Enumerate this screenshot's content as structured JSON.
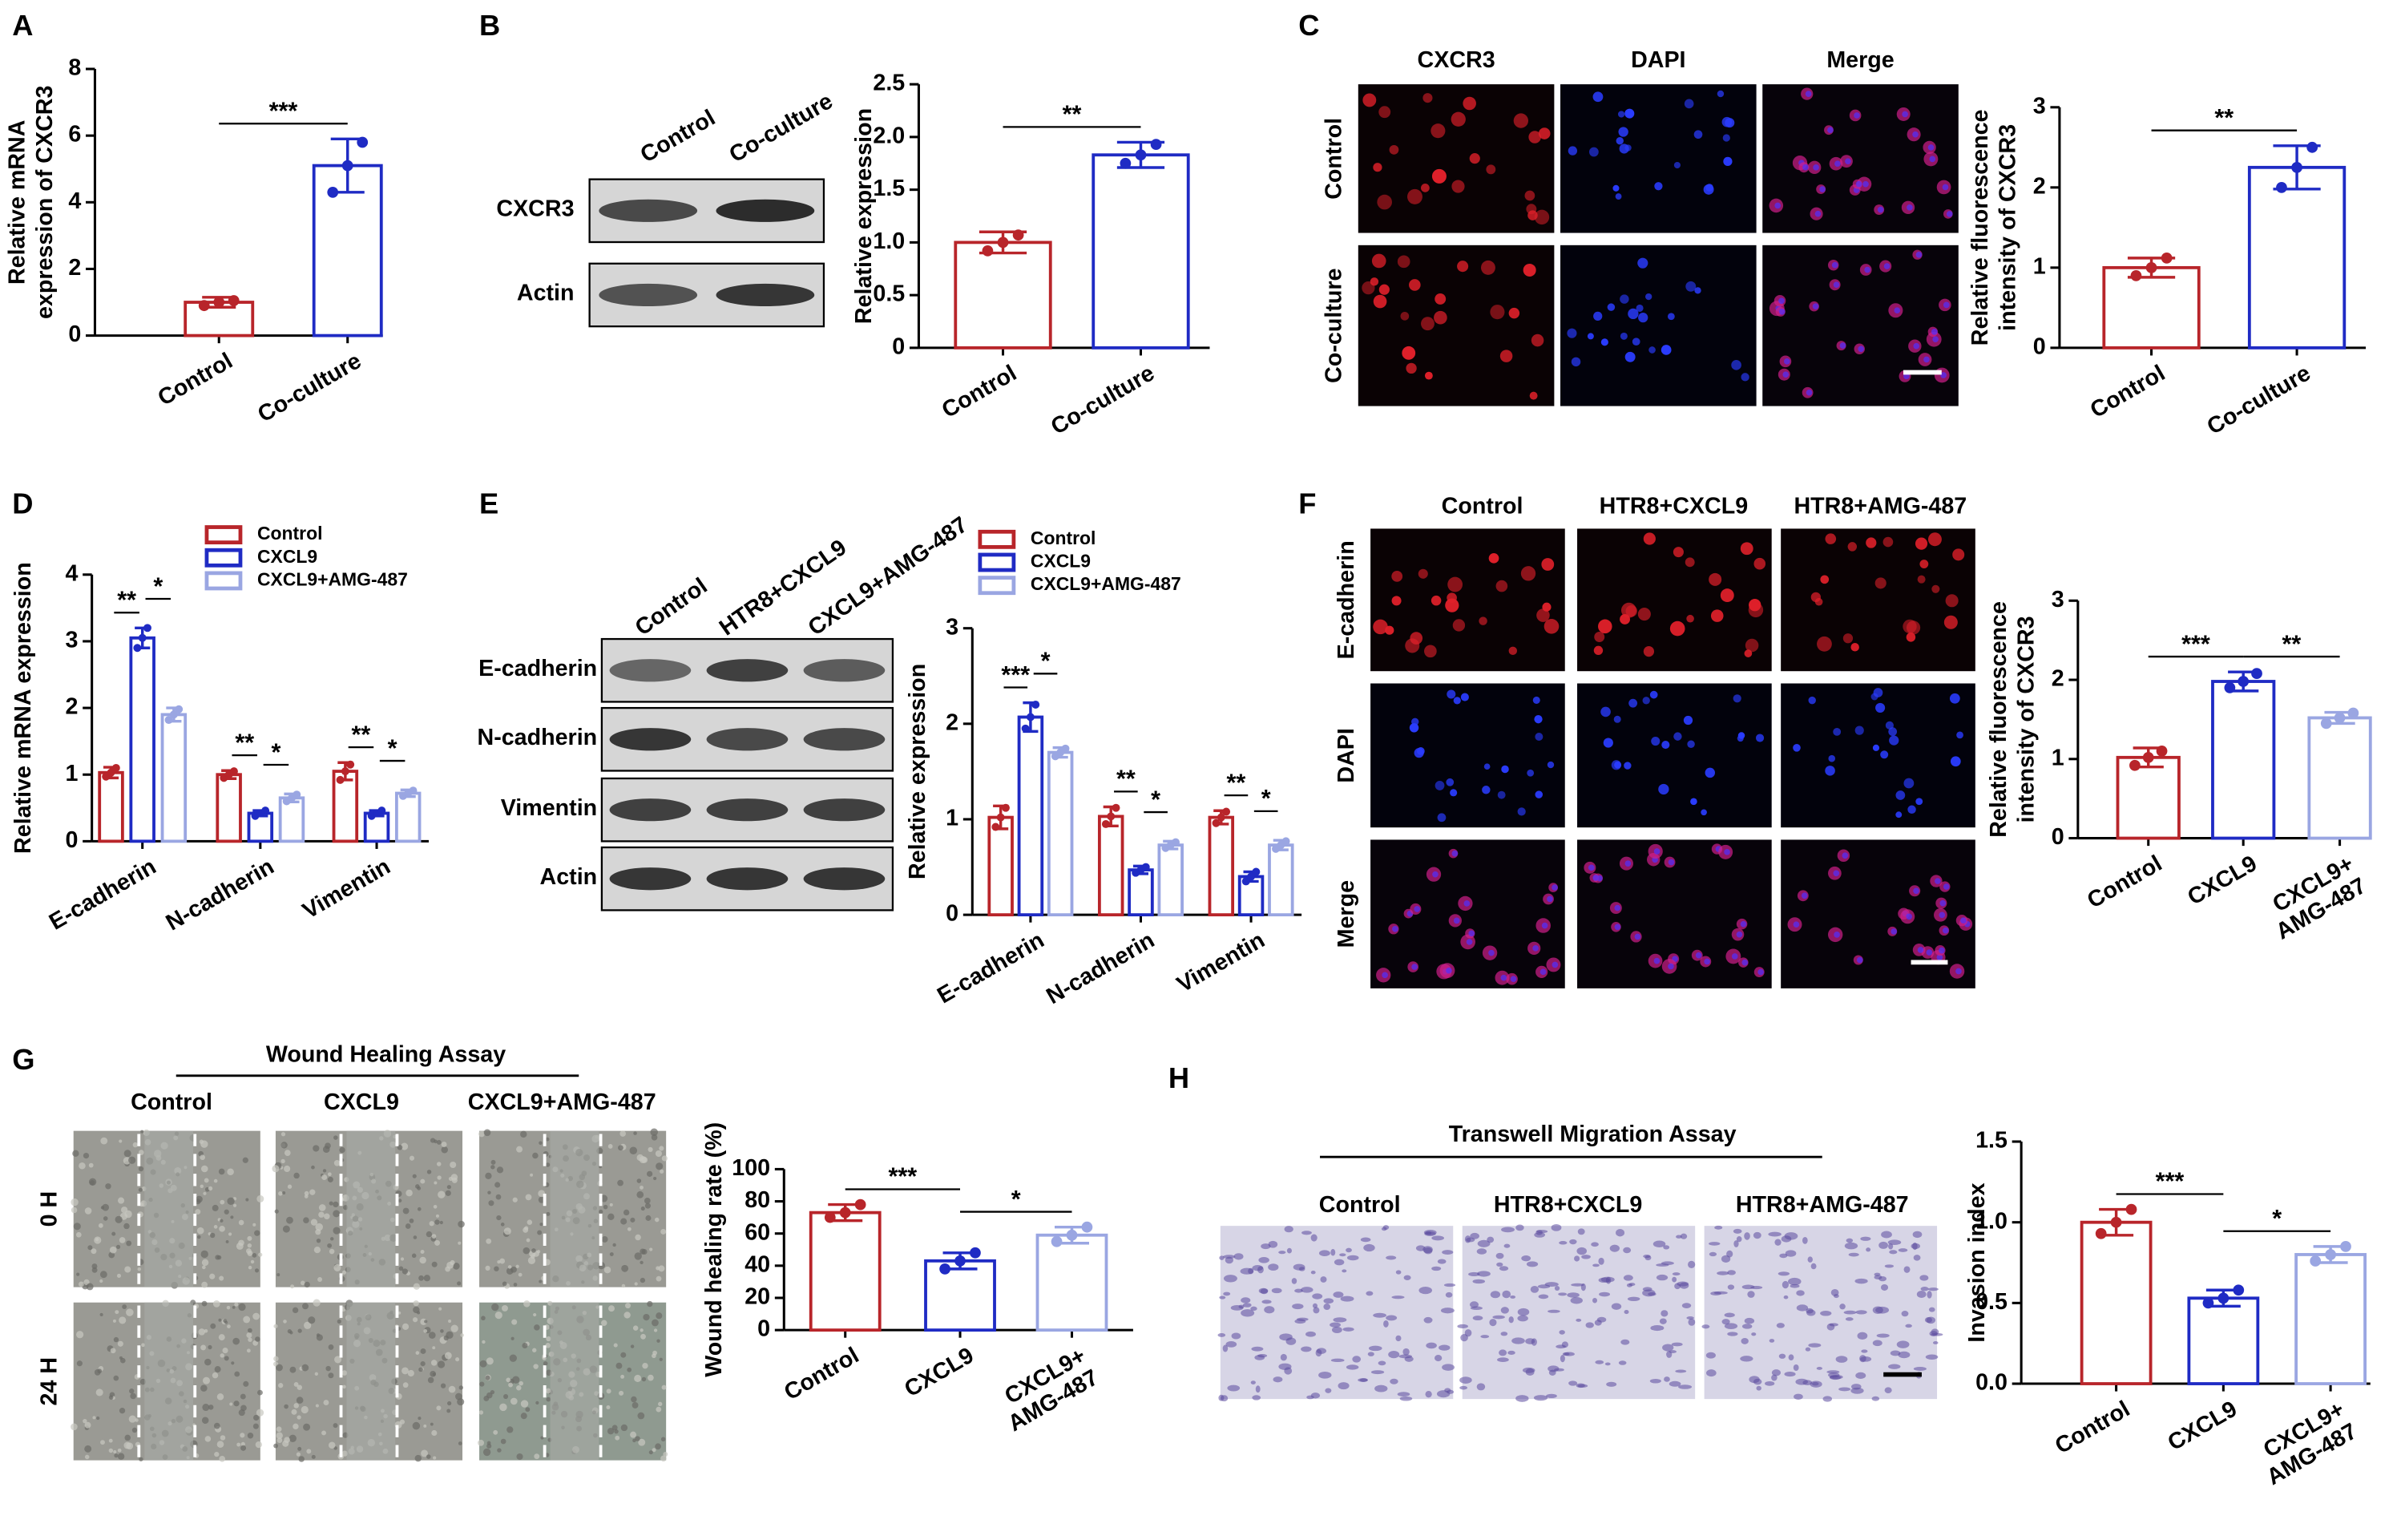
{
  "chart_data": [
    {
      "type": "bar",
      "ylabel": [
        "Relative mRNA",
        "expression of CXCR3"
      ],
      "categories": [
        "Control",
        "Co-culture"
      ],
      "values": [
        1.0,
        5.1
      ],
      "errors": [
        0.15,
        0.8
      ],
      "points": [
        [
          0.9,
          1.0,
          1.05
        ],
        [
          4.3,
          5.1,
          5.8
        ]
      ],
      "colors": [
        "#b8252a",
        "#1f2bc4"
      ],
      "ylim": [
        0,
        8
      ],
      "yticks": [
        0,
        2,
        4,
        6,
        8
      ],
      "annotations": [
        {
          "text": "***",
          "between": [
            "Control",
            "Co-culture"
          ]
        }
      ]
    },
    {
      "type": "bar",
      "ylabel": [
        "Relative expression"
      ],
      "categories": [
        "Control",
        "Co-culture"
      ],
      "values": [
        1.0,
        1.83
      ],
      "errors": [
        0.1,
        0.12
      ],
      "points": [
        [
          0.92,
          1.0,
          1.07
        ],
        [
          1.75,
          1.83,
          1.93
        ]
      ],
      "colors": [
        "#b8252a",
        "#1f2bc4"
      ],
      "ylim": [
        0,
        2.5
      ],
      "yticks": [
        0,
        0.5,
        {
          "value": 1,
          "label": "1.0"
        },
        1.5,
        {
          "value": 2,
          "label": "2.0"
        },
        2.5
      ],
      "annotations": [
        {
          "text": "**",
          "between": [
            "Control",
            "Co-culture"
          ]
        }
      ]
    },
    {
      "type": "bar",
      "ylabel": [
        "Relative fluorescence",
        "intensity of CXCR3"
      ],
      "categories": [
        "Control",
        "Co-culture"
      ],
      "values": [
        1.0,
        2.25
      ],
      "errors": [
        0.12,
        0.27
      ],
      "points": [
        [
          0.9,
          1.0,
          1.12
        ],
        [
          2.0,
          2.25,
          2.5
        ]
      ],
      "colors": [
        "#b8252a",
        "#1f2bc4"
      ],
      "ylim": [
        0,
        3
      ],
      "yticks": [
        0,
        1,
        2,
        3
      ],
      "annotations": [
        {
          "text": "**",
          "between": [
            "Control",
            "Co-culture"
          ]
        }
      ]
    },
    {
      "type": "bar",
      "ylabel": [
        "Relative mRNA expression"
      ],
      "categories": [
        "E-cadherin",
        "N-cadherin",
        "Vimentin"
      ],
      "legend": "top",
      "series": [
        {
          "name": "Control",
          "color": "#b8252a",
          "values": [
            1.03,
            1.0,
            1.05
          ],
          "errors": [
            0.08,
            0.06,
            0.13
          ],
          "points": [
            [
              0.97,
              1.03,
              1.1
            ],
            [
              0.95,
              1.0,
              1.05
            ],
            [
              0.92,
              1.05,
              1.15
            ]
          ]
        },
        {
          "name": "CXCL9",
          "color": "#1f2bc4",
          "values": [
            3.05,
            0.42,
            0.42
          ],
          "errors": [
            0.15,
            0.04,
            0.04
          ],
          "points": [
            [
              2.9,
              3.05,
              3.2
            ],
            [
              0.38,
              0.42,
              0.46
            ],
            [
              0.38,
              0.42,
              0.46
            ]
          ]
        },
        {
          "name": "CXCL9+AMG-487",
          "color": "#9aa6e2",
          "values": [
            1.9,
            0.65,
            0.72
          ],
          "errors": [
            0.1,
            0.06,
            0.05
          ],
          "points": [
            [
              1.82,
              1.9,
              1.98
            ],
            [
              0.6,
              0.65,
              0.7
            ],
            [
              0.68,
              0.72,
              0.76
            ]
          ]
        }
      ],
      "ylim": [
        0,
        4
      ],
      "yticks": [
        0,
        1,
        2,
        3,
        4
      ],
      "annotations": [
        {
          "text": "**",
          "category": "E-cadherin",
          "between": [
            "Control",
            "CXCL9"
          ]
        },
        {
          "text": "*",
          "category": "E-cadherin",
          "between": [
            "CXCL9",
            "CXCL9+AMG-487"
          ]
        },
        {
          "text": "**",
          "category": "N-cadherin",
          "between": [
            "Control",
            "CXCL9"
          ]
        },
        {
          "text": "*",
          "category": "N-cadherin",
          "between": [
            "CXCL9",
            "CXCL9+AMG-487"
          ]
        },
        {
          "text": "**",
          "category": "Vimentin",
          "between": [
            "Control",
            "CXCL9"
          ]
        },
        {
          "text": "*",
          "category": "Vimentin",
          "between": [
            "CXCL9",
            "CXCL9+AMG-487"
          ]
        }
      ]
    },
    {
      "type": "bar",
      "ylabel": [
        "Relative expression"
      ],
      "categories": [
        "E-cadherin",
        "N-cadherin",
        "Vimentin"
      ],
      "legend": "top",
      "series": [
        {
          "name": "Control",
          "color": "#b8252a",
          "values": [
            1.02,
            1.03,
            1.02
          ],
          "errors": [
            0.12,
            0.1,
            0.07
          ],
          "points": [
            [
              0.92,
              1.02,
              1.12
            ],
            [
              0.95,
              1.03,
              1.12
            ],
            [
              0.96,
              1.02,
              1.08
            ]
          ]
        },
        {
          "name": "CXCL9",
          "color": "#1f2bc4",
          "values": [
            2.07,
            0.47,
            0.4
          ],
          "errors": [
            0.15,
            0.04,
            0.05
          ],
          "points": [
            [
              1.95,
              2.07,
              2.2
            ],
            [
              0.44,
              0.47,
              0.5
            ],
            [
              0.35,
              0.4,
              0.45
            ]
          ]
        },
        {
          "name": "CXCL9+AMG-487",
          "color": "#9aa6e2",
          "values": [
            1.7,
            0.73,
            0.73
          ],
          "errors": [
            0.05,
            0.04,
            0.05
          ],
          "points": [
            [
              1.66,
              1.7,
              1.74
            ],
            [
              0.7,
              0.73,
              0.76
            ],
            [
              0.69,
              0.73,
              0.77
            ]
          ]
        }
      ],
      "ylim": [
        0,
        3
      ],
      "yticks": [
        0,
        1,
        2,
        3
      ],
      "annotations": [
        {
          "text": "***",
          "category": "E-cadherin",
          "between": [
            "Control",
            "CXCL9"
          ]
        },
        {
          "text": "*",
          "category": "E-cadherin",
          "between": [
            "CXCL9",
            "CXCL9+AMG-487"
          ]
        },
        {
          "text": "**",
          "category": "N-cadherin",
          "between": [
            "Control",
            "CXCL9"
          ]
        },
        {
          "text": "*",
          "category": "N-cadherin",
          "between": [
            "CXCL9",
            "CXCL9+AMG-487"
          ]
        },
        {
          "text": "**",
          "category": "Vimentin",
          "between": [
            "Control",
            "CXCL9"
          ]
        },
        {
          "text": "*",
          "category": "Vimentin",
          "between": [
            "CXCL9",
            "CXCL9+AMG-487"
          ]
        }
      ]
    },
    {
      "type": "bar",
      "ylabel": [
        "Relative fluorescence",
        "intensity of CXCR3"
      ],
      "categories": [
        "Control",
        "CXCL9",
        "CXCL9+\nAMG-487"
      ],
      "values": [
        1.02,
        1.98,
        1.52
      ],
      "errors": [
        0.12,
        0.12,
        0.07
      ],
      "points": [
        [
          0.92,
          1.02,
          1.1
        ],
        [
          1.9,
          1.98,
          2.08
        ],
        [
          1.45,
          1.52,
          1.58
        ]
      ],
      "colors": [
        "#b8252a",
        "#1f2bc4",
        "#9aa6e2"
      ],
      "ylim": [
        0,
        3
      ],
      "yticks": [
        0,
        1,
        2,
        3
      ],
      "annotations": [
        {
          "text": "***",
          "between": [
            "Control",
            "CXCL9"
          ]
        },
        {
          "text": "**",
          "between": [
            "CXCL9",
            "CXCL9+\nAMG-487"
          ]
        }
      ]
    },
    {
      "type": "bar",
      "ylabel": [
        "Wound healing rate (%)"
      ],
      "categories": [
        "Control",
        "CXCL9",
        "CXCL9+\nAMG-487"
      ],
      "values": [
        73,
        43,
        59
      ],
      "errors": [
        5,
        5,
        5
      ],
      "points": [
        [
          70,
          73,
          78
        ],
        [
          38,
          43,
          48
        ],
        [
          55,
          59,
          64
        ]
      ],
      "colors": [
        "#b8252a",
        "#1f2bc4",
        "#9aa6e2"
      ],
      "ylim": [
        0,
        100
      ],
      "yticks": [
        0,
        20,
        40,
        60,
        80,
        100
      ],
      "annotations": [
        {
          "text": "***",
          "between": [
            "Control",
            "CXCL9"
          ]
        },
        {
          "text": "*",
          "between": [
            "CXCL9",
            "CXCL9+\nAMG-487"
          ]
        }
      ]
    },
    {
      "type": "bar",
      "ylabel": [
        "Invasion index"
      ],
      "categories": [
        "Control",
        "CXCL9",
        "CXCL9+\nAMG-487"
      ],
      "values": [
        1.0,
        0.53,
        0.8
      ],
      "errors": [
        0.08,
        0.05,
        0.05
      ],
      "points": [
        [
          0.93,
          1.0,
          1.08
        ],
        [
          0.5,
          0.53,
          0.58
        ],
        [
          0.76,
          0.8,
          0.85
        ]
      ],
      "colors": [
        "#b8252a",
        "#1f2bc4",
        "#9aa6e2"
      ],
      "ylim": [
        0,
        1.5
      ],
      "yticks": [
        {
          "value": 0,
          "label": "0.0"
        },
        0.5,
        {
          "value": 1,
          "label": "1.0"
        },
        1.5
      ],
      "annotations": [
        {
          "text": "***",
          "between": [
            "Control",
            "CXCL9"
          ]
        },
        {
          "text": "*",
          "between": [
            "CXCL9",
            "CXCL9+\nAMG-487"
          ]
        }
      ]
    }
  ],
  "figure": {
    "panel_labels": [
      "A",
      "B",
      "C",
      "D",
      "E",
      "F",
      "G",
      "H"
    ],
    "blot_b": {
      "columns": [
        "Control",
        "Co-culture"
      ],
      "rows": [
        "CXCR3",
        "Actin"
      ]
    },
    "images_c": {
      "columns": [
        "CXCR3",
        "DAPI",
        "Merge"
      ],
      "rows": [
        "Control",
        "Co-culture"
      ]
    },
    "blot_e": {
      "columns": [
        "Control",
        "HTR8+CXCL9",
        "CXCL9+AMG-487"
      ],
      "rows": [
        "E-cadherin",
        "N-cadherin",
        "Vimentin",
        "Actin"
      ]
    },
    "images_f": {
      "columns": [
        "Control",
        "HTR8+CXCL9",
        "HTR8+AMG-487"
      ],
      "rows": [
        "E-cadherin",
        "DAPI",
        "Merge"
      ]
    },
    "images_g": {
      "title": "Wound Healing Assay",
      "columns": [
        "Control",
        "CXCL9",
        "CXCL9+AMG-487"
      ],
      "rows": [
        "0 H",
        "24 H"
      ]
    },
    "images_h": {
      "title": "Transwell Migration Assay",
      "columns": [
        "Control",
        "HTR8+CXCL9",
        "HTR8+AMG-487"
      ]
    }
  }
}
